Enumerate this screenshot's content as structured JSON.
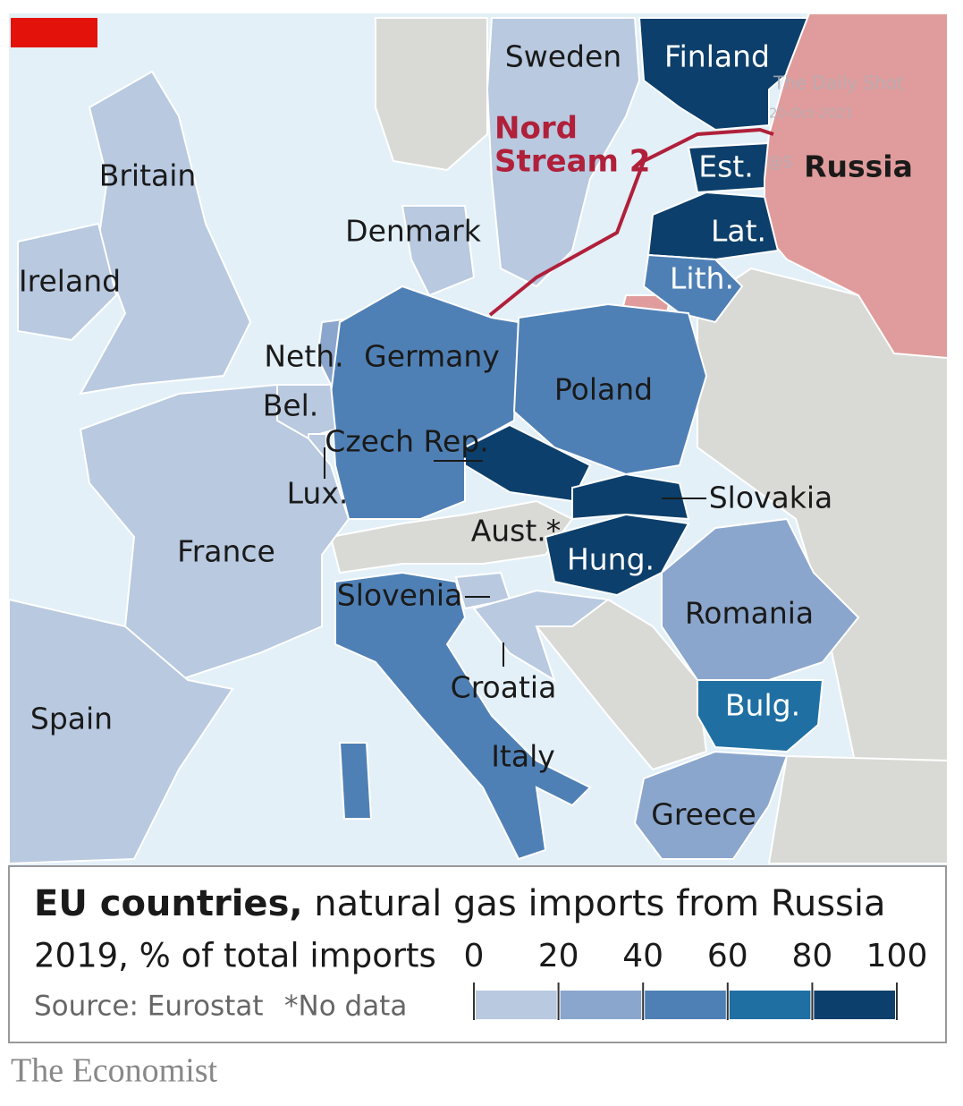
{
  "map": {
    "countries": [
      {
        "name": "Sweden",
        "color": "#b8c9e0"
      },
      {
        "name": "Finland",
        "color": "#0c3f6b"
      },
      {
        "name": "Est.",
        "color": "#0c3f6b"
      },
      {
        "name": "Russia",
        "color": "#e09c9c"
      },
      {
        "name": "Lat.",
        "color": "#0c3f6b"
      },
      {
        "name": "Lith.",
        "color": "#4f80b5"
      },
      {
        "name": "Britain",
        "color": "#b8c9e0"
      },
      {
        "name": "Ireland",
        "color": "#b8c9e0"
      },
      {
        "name": "Denmark",
        "color": "#b8c9e0"
      },
      {
        "name": "Neth.",
        "color": "#8aa6cc"
      },
      {
        "name": "Germany",
        "color": "#4f80b5"
      },
      {
        "name": "Bel.",
        "color": "#b8c9e0"
      },
      {
        "name": "Poland",
        "color": "#4f80b5"
      },
      {
        "name": "Czech Rep.",
        "color": "#0c3f6b"
      },
      {
        "name": "Lux.",
        "color": "#b8c9e0"
      },
      {
        "name": "Slovakia",
        "color": "#0c3f6b"
      },
      {
        "name": "Aust.*",
        "color": "#d9d9d6"
      },
      {
        "name": "France",
        "color": "#b8c9e0"
      },
      {
        "name": "Hung.",
        "color": "#0c3f6b"
      },
      {
        "name": "Slovenia",
        "color": "#b8c9e0"
      },
      {
        "name": "Romania",
        "color": "#8aa6cc"
      },
      {
        "name": "Croatia",
        "color": "#b8c9e0"
      },
      {
        "name": "Bulg.",
        "color": "#1f6fa3"
      },
      {
        "name": "Spain",
        "color": "#b8c9e0"
      },
      {
        "name": "Italy",
        "color": "#4f80b5"
      },
      {
        "name": "Greece",
        "color": "#8aa6cc"
      }
    ],
    "pipeline": {
      "name": [
        "Nord",
        "Stream 2"
      ],
      "color": "#b0203a"
    },
    "watermark": [
      "The Daily Shot",
      "20-Oct-2021",
      "@S"
    ]
  },
  "legend": {
    "title_bold": "EU countries,",
    "title_rest": "natural gas imports from Russia",
    "subtitle": "2019, % of total imports",
    "source": "Source: Eurostat",
    "note": "*No data",
    "ticks": [
      0,
      20,
      40,
      60,
      80,
      100
    ],
    "colors": [
      "#b8c9e0",
      "#8aa6cc",
      "#4f80b5",
      "#1f6fa3",
      "#0c3f6b"
    ]
  },
  "footer": "The Economist"
}
